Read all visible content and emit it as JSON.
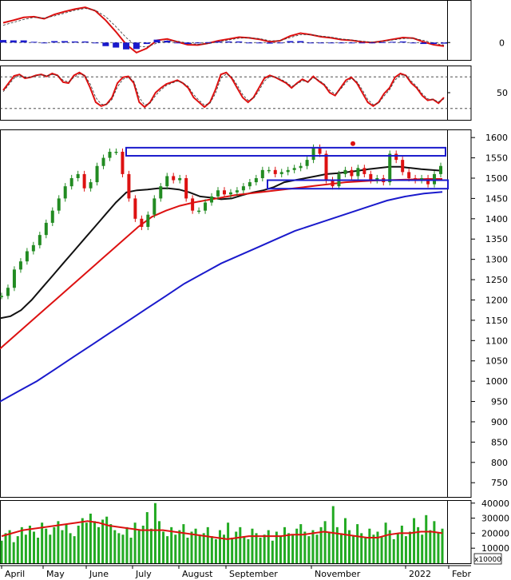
{
  "chart_data": [
    {
      "type": "line",
      "panel": "macd",
      "yticks": [
        0
      ],
      "series": [
        {
          "values": [
            0.55,
            0.62,
            0.7,
            0.72,
            0.66,
            0.78,
            0.86,
            0.93,
            0.98,
            0.88,
            0.62,
            0.3,
            -0.05,
            -0.28,
            -0.16,
            0.06,
            0.1,
            0.02,
            -0.06,
            -0.07,
            -0.02,
            0.05,
            0.1,
            0.15,
            0.13,
            0.09,
            0.02,
            0.05,
            0.18,
            0.26,
            0.22,
            0.16,
            0.13,
            0.08,
            0.06,
            0.02,
            0.0,
            0.04,
            0.09,
            0.14,
            0.12,
            0.02,
            -0.06,
            -0.1
          ],
          "color": "#dd1111"
        },
        {
          "values": [
            0.48,
            0.56,
            0.64,
            0.7,
            0.68,
            0.74,
            0.82,
            0.9,
            0.95,
            0.9,
            0.72,
            0.44,
            0.14,
            -0.1,
            -0.12,
            -0.02,
            0.05,
            0.04,
            -0.02,
            -0.05,
            -0.03,
            0.02,
            0.07,
            0.12,
            0.13,
            0.11,
            0.05,
            0.05,
            0.14,
            0.22,
            0.22,
            0.18,
            0.15,
            0.1,
            0.07,
            0.04,
            0.01,
            0.03,
            0.07,
            0.11,
            0.12,
            0.06,
            -0.02,
            -0.07
          ],
          "color": "#333333",
          "dashed": true
        },
        {
          "type": "bar",
          "values": [
            0.07,
            0.06,
            0.06,
            0.02,
            -0.02,
            0.04,
            0.04,
            0.03,
            0.03,
            -0.02,
            -0.1,
            -0.14,
            -0.19,
            -0.18,
            -0.04,
            0.08,
            0.05,
            -0.02,
            -0.04,
            -0.02,
            0.01,
            0.03,
            0.03,
            0.03,
            0.0,
            -0.02,
            -0.03,
            0.0,
            0.04,
            0.04,
            0.0,
            -0.02,
            -0.02,
            -0.02,
            -0.01,
            -0.02,
            -0.01,
            0.01,
            0.02,
            0.03,
            0.0,
            -0.04,
            -0.04,
            -0.03
          ],
          "color": "#1a1acc"
        }
      ]
    },
    {
      "type": "line",
      "panel": "stochastic",
      "yticks": [
        50
      ],
      "series": [
        {
          "values": [
            55,
            70,
            85,
            88,
            80,
            82,
            86,
            88,
            84,
            90,
            86,
            72,
            70,
            86,
            92,
            85,
            60,
            30,
            22,
            26,
            40,
            70,
            82,
            84,
            70,
            30,
            20,
            30,
            50,
            60,
            68,
            72,
            76,
            70,
            60,
            40,
            30,
            20,
            30,
            56,
            88,
            92,
            80,
            60,
            40,
            30,
            40,
            60,
            80,
            86,
            82,
            76,
            70,
            60,
            70,
            78,
            72,
            84,
            74,
            66,
            50,
            44,
            60,
            76,
            82,
            70,
            50,
            30,
            22,
            30,
            48,
            60,
            82,
            90,
            86,
            70,
            60,
            44,
            34,
            36,
            28,
            40
          ],
          "color": "#dd1111"
        },
        {
          "values": [
            52,
            66,
            80,
            86,
            82,
            82,
            85,
            87,
            85,
            88,
            86,
            76,
            72,
            82,
            89,
            86,
            68,
            40,
            26,
            25,
            36,
            62,
            78,
            82,
            74,
            40,
            24,
            28,
            44,
            56,
            65,
            70,
            74,
            71,
            63,
            46,
            34,
            24,
            28,
            48,
            80,
            89,
            83,
            66,
            46,
            34,
            38,
            54,
            74,
            84,
            83,
            78,
            72,
            63,
            68,
            75,
            73,
            81,
            76,
            68,
            55,
            47,
            57,
            71,
            80,
            73,
            56,
            36,
            25,
            28,
            43,
            56,
            76,
            87,
            86,
            74,
            63,
            48,
            37,
            36,
            31,
            37
          ],
          "color": "#333333",
          "dashed": true
        }
      ],
      "ref_lines": [
        83,
        17
      ]
    },
    {
      "type": "line",
      "panel": "price",
      "ylim": [
        715,
        1620
      ],
      "yticks": [
        750,
        800,
        850,
        900,
        950,
        1000,
        1050,
        1100,
        1150,
        1200,
        1250,
        1300,
        1350,
        1400,
        1450,
        1500,
        1550,
        1600
      ],
      "xlabels": [
        "April",
        "May",
        "June",
        "July",
        "August",
        "September",
        "November",
        "2022",
        "Febr"
      ],
      "series": [
        {
          "name": "price",
          "values": [
            1210,
            1230,
            1275,
            1295,
            1320,
            1335,
            1360,
            1390,
            1420,
            1450,
            1480,
            1500,
            1510,
            1475,
            1490,
            1530,
            1550,
            1565,
            1565,
            1510,
            1450,
            1400,
            1380,
            1410,
            1450,
            1480,
            1505,
            1495,
            1500,
            1450,
            1420,
            1420,
            1440,
            1455,
            1470,
            1460,
            1465,
            1470,
            1480,
            1490,
            1500,
            1520,
            1520,
            1510,
            1515,
            1520,
            1525,
            1530,
            1545,
            1575,
            1560,
            1495,
            1480,
            1510,
            1520,
            1505,
            1525,
            1510,
            1495,
            1500,
            1490,
            1560,
            1545,
            1515,
            1500,
            1495,
            1500,
            1485,
            1510,
            1530
          ],
          "color": "#228b22"
        },
        {
          "name": "ma20",
          "values": [
            1155,
            1160,
            1175,
            1200,
            1230,
            1260,
            1290,
            1320,
            1350,
            1380,
            1410,
            1440,
            1465,
            1470,
            1472,
            1475,
            1475,
            1472,
            1465,
            1455,
            1452,
            1448,
            1450,
            1458,
            1465,
            1470,
            1478,
            1490,
            1495,
            1500,
            1505,
            1510,
            1512,
            1515,
            1518,
            1522,
            1525,
            1528,
            1528,
            1525,
            1522,
            1520,
            1518
          ],
          "color": "#111111"
        },
        {
          "name": "ma50",
          "values": [
            1080,
            1110,
            1140,
            1170,
            1200,
            1230,
            1260,
            1290,
            1320,
            1350,
            1380,
            1405,
            1420,
            1432,
            1440,
            1446,
            1452,
            1458,
            1462,
            1466,
            1470,
            1474,
            1478,
            1482,
            1486,
            1490,
            1492,
            1494,
            1495,
            1496,
            1497,
            1498,
            1498
          ],
          "color": "#dd1111"
        },
        {
          "name": "ma200",
          "values": [
            950,
            975,
            1000,
            1030,
            1060,
            1090,
            1120,
            1150,
            1180,
            1210,
            1240,
            1265,
            1290,
            1310,
            1330,
            1350,
            1370,
            1385,
            1400,
            1415,
            1430,
            1445,
            1455,
            1462,
            1466
          ],
          "color": "#1a1acc"
        }
      ],
      "annotations": [
        {
          "type": "rect",
          "from": [
            1555,
            1575
          ],
          "span": "June-2022",
          "color": "#1a1acc"
        },
        {
          "type": "rect",
          "from": [
            1474,
            1495
          ],
          "span": "September-2022",
          "color": "#1a1acc"
        }
      ]
    },
    {
      "type": "bar",
      "panel": "volume",
      "ylim": [
        0,
        42000
      ],
      "yticks": [
        10000,
        20000,
        30000,
        40000
      ],
      "scale_note": "x10000",
      "series": [
        {
          "name": "volume",
          "values": [
            15,
            20,
            22,
            14,
            18,
            24,
            19,
            25,
            21,
            17,
            27,
            23,
            19,
            24,
            28,
            22,
            26,
            20,
            18,
            25,
            30,
            27,
            33,
            28,
            24,
            29,
            31,
            26,
            22,
            20,
            19,
            24,
            17,
            27,
            22,
            25,
            34,
            23,
            40,
            28,
            21,
            18,
            24,
            19,
            22,
            26,
            17,
            21,
            23,
            19,
            20,
            24,
            18,
            16,
            22,
            19,
            27,
            17,
            21,
            24,
            18,
            16,
            23,
            20,
            17,
            19,
            22,
            15,
            21,
            18,
            24,
            20,
            19,
            23,
            26,
            21,
            18,
            22,
            19,
            24,
            28,
            21,
            38,
            24,
            20,
            30,
            22,
            18,
            26,
            20,
            17,
            23,
            19,
            21,
            18,
            27,
            22,
            16,
            20,
            25,
            18,
            21,
            30,
            24,
            19,
            32,
            22,
            28,
            20,
            23
          ],
          "color": "#22aa22"
        },
        {
          "name": "vol-ma",
          "values": [
            18,
            20,
            22,
            23,
            24,
            25,
            26,
            27,
            28,
            27,
            25,
            24,
            23,
            22,
            22,
            22,
            21,
            20,
            19,
            18,
            17,
            16,
            17,
            18,
            18,
            18,
            18,
            19,
            19,
            20,
            21,
            20,
            19,
            18,
            17,
            17,
            19,
            20,
            20,
            21,
            21,
            20
          ],
          "color": "#dd1111"
        }
      ]
    }
  ]
}
